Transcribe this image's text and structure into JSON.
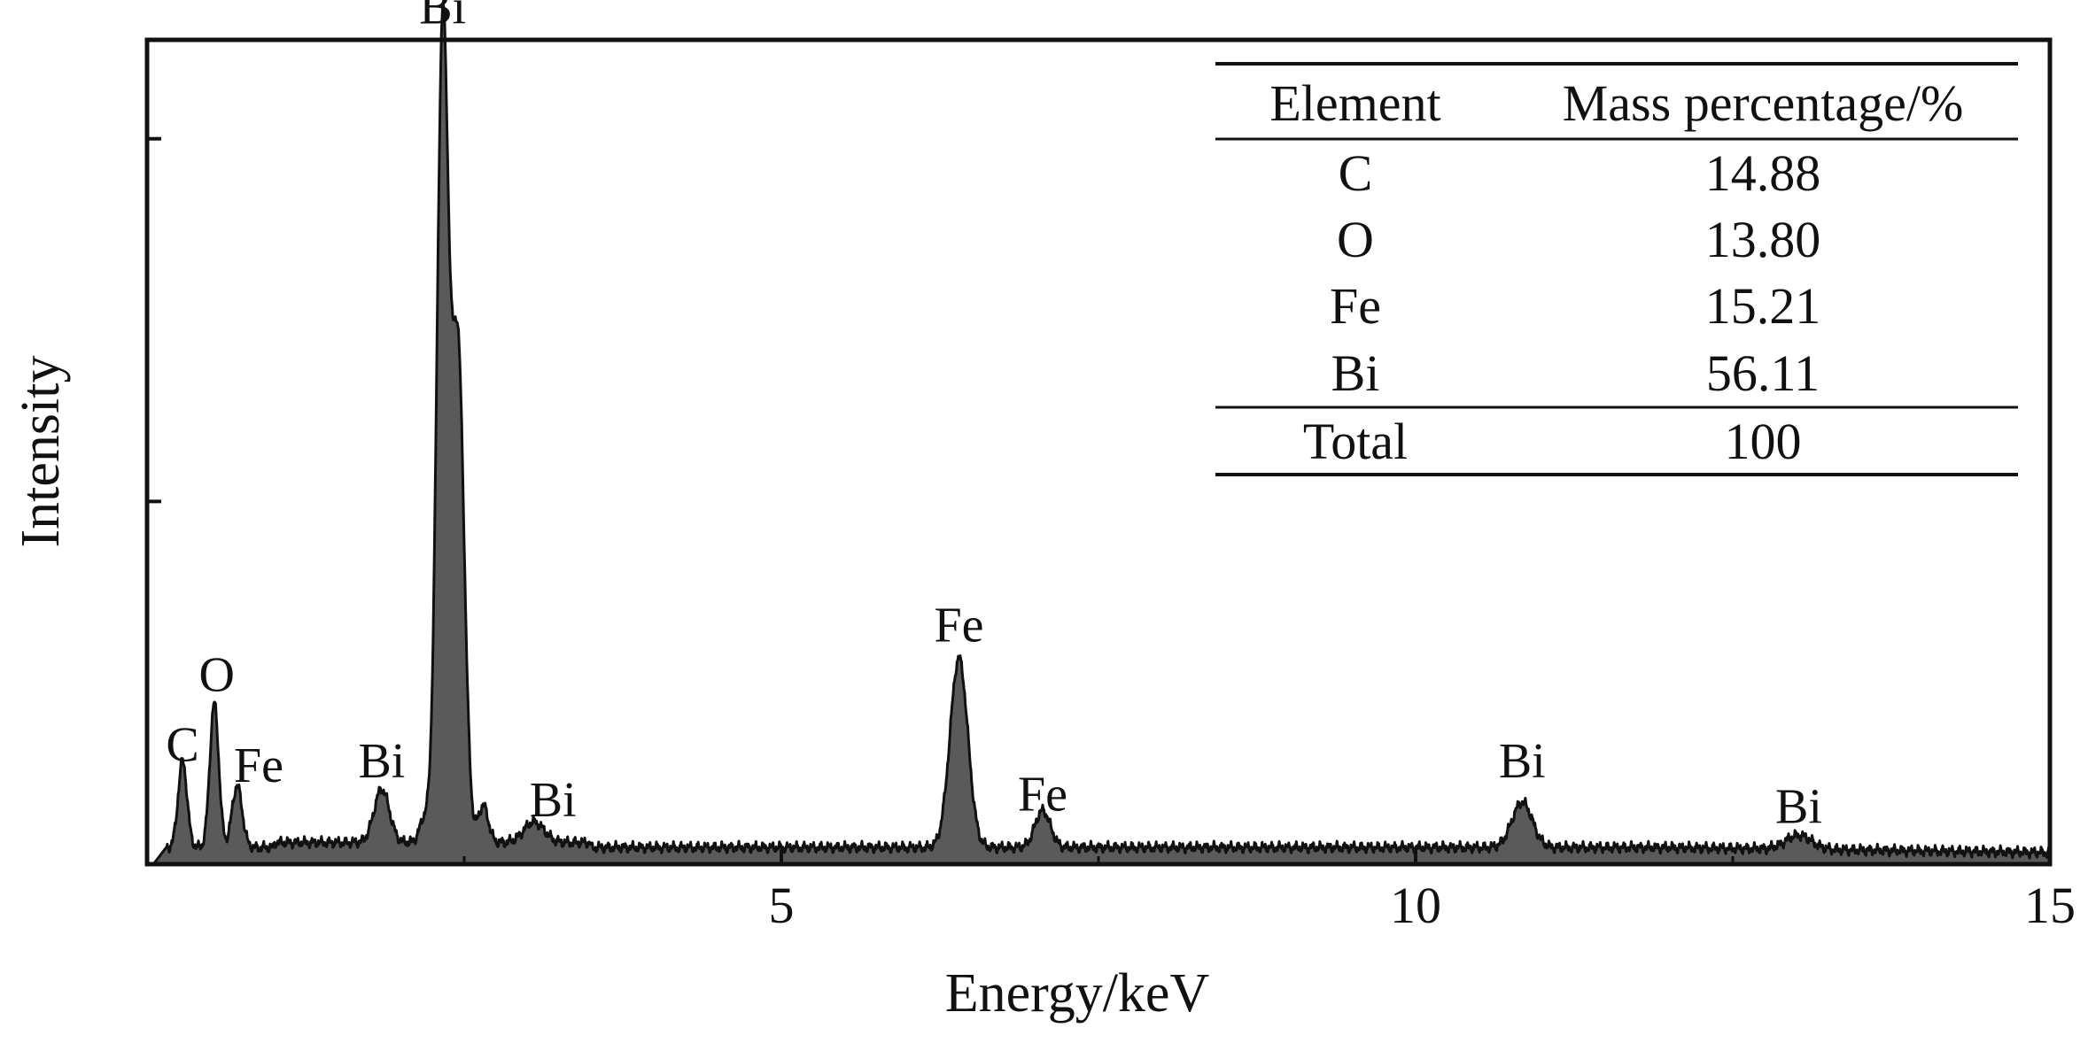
{
  "chart_data": {
    "type": "area",
    "title": "",
    "xlabel": "Energy/keV",
    "ylabel": "Intensity",
    "xlim": [
      0,
      15
    ],
    "ylim": [
      0,
      100
    ],
    "x_ticks": [
      5,
      10,
      15
    ],
    "x_tick_labels": [
      "5",
      "10",
      "15"
    ],
    "y_tick_marks": [
      44,
      88
    ],
    "grid": false,
    "legend": "none",
    "fill_color": "#5a5a5a",
    "line_color": "#111111",
    "baseline": 2.0,
    "peaks": [
      {
        "x": 0.28,
        "height": 10.5,
        "width": 0.035
      },
      {
        "x": 0.53,
        "height": 17.5,
        "width": 0.035
      },
      {
        "x": 0.71,
        "height": 7.5,
        "width": 0.04
      },
      {
        "x": 1.85,
        "height": 6.5,
        "width": 0.06
      },
      {
        "x": 2.19,
        "height": 3.0,
        "width": 0.04
      },
      {
        "x": 2.33,
        "height": 98.0,
        "width": 0.045
      },
      {
        "x": 2.45,
        "height": 60.0,
        "width": 0.05
      },
      {
        "x": 2.65,
        "height": 4.5,
        "width": 0.04
      },
      {
        "x": 3.05,
        "height": 2.5,
        "width": 0.08
      },
      {
        "x": 6.4,
        "height": 23.0,
        "width": 0.07
      },
      {
        "x": 7.06,
        "height": 4.5,
        "width": 0.06
      },
      {
        "x": 10.84,
        "height": 5.5,
        "width": 0.08
      },
      {
        "x": 13.02,
        "height": 1.7,
        "width": 0.1
      }
    ],
    "peak_labels": [
      {
        "text": "C",
        "x": 0.28,
        "y": 12.5
      },
      {
        "text": "O",
        "x": 0.55,
        "y": 21.0
      },
      {
        "text": "Fe",
        "x": 0.88,
        "y": 10.0
      },
      {
        "text": "Bi",
        "x": 1.85,
        "y": 10.5
      },
      {
        "text": "Bi",
        "x": 2.33,
        "y": 102.0
      },
      {
        "text": "Bi",
        "x": 3.2,
        "y": 5.8
      },
      {
        "text": "Fe",
        "x": 6.4,
        "y": 27.0
      },
      {
        "text": "Fe",
        "x": 7.06,
        "y": 6.5
      },
      {
        "text": "Bi",
        "x": 10.84,
        "y": 10.5
      },
      {
        "text": "Bi",
        "x": 13.02,
        "y": 5.0
      }
    ]
  },
  "table": {
    "headers": [
      "Element",
      "Mass percentage/%"
    ],
    "rows": [
      [
        "C",
        "14.88"
      ],
      [
        "O",
        "13.80"
      ],
      [
        "Fe",
        "15.21"
      ],
      [
        "Bi",
        "56.11"
      ]
    ],
    "total": [
      "Total",
      "100"
    ]
  }
}
